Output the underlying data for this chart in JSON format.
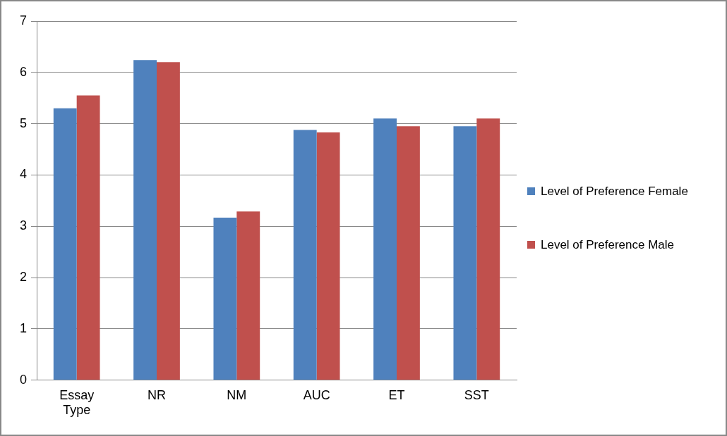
{
  "chart_data": {
    "type": "bar",
    "categories": [
      "Essay Type",
      "NR",
      "NM",
      "AUC",
      "ET",
      "SST"
    ],
    "series": [
      {
        "name": "Level of Preference Female",
        "color": "#4f81bd",
        "values": [
          5.3,
          6.24,
          3.17,
          4.88,
          5.1,
          4.95
        ]
      },
      {
        "name": "Level of Preference Male",
        "color": "#c0504d",
        "values": [
          5.55,
          6.2,
          3.29,
          4.83,
          4.95,
          5.1
        ]
      }
    ],
    "ylim": [
      0,
      7
    ],
    "yticks": [
      0,
      1,
      2,
      3,
      4,
      5,
      6,
      7
    ],
    "grid": "y",
    "legend": "right"
  }
}
